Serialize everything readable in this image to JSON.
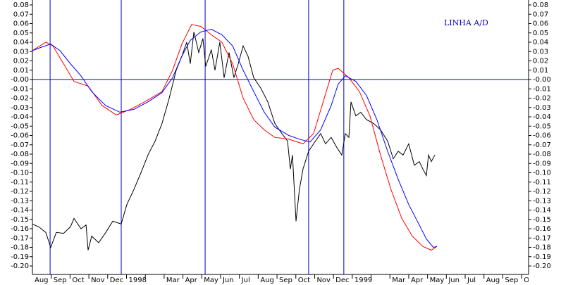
{
  "chart_data": {
    "type": "line",
    "title": "LINHA A/D",
    "categories": [
      "Aug",
      "Sep",
      "Oct",
      "Nov",
      "Dec",
      "1998",
      null,
      "Mar",
      "Apr",
      "May",
      "Jun",
      "Jul",
      "Aug",
      "Sep",
      "Oct",
      "Nov",
      "Dec",
      "1999",
      null,
      "Mar",
      "Apr",
      "May",
      "Jun",
      "Jul",
      "Aug",
      "Sep",
      "Oct"
    ],
    "xlim": [
      0,
      26.37
    ],
    "ylim": [
      -0.2,
      0.08
    ],
    "yticks": [
      0.08,
      0.07,
      0.06,
      0.05,
      0.04,
      0.03,
      0.02,
      0.01,
      {
        "value": 0,
        "label": "-0.00"
      },
      -0.01,
      -0.02,
      -0.03,
      -0.04,
      -0.05,
      -0.06,
      -0.07,
      -0.08,
      -0.09,
      {
        "value": -0.1,
        "label": "-0.10"
      },
      -0.11,
      -0.12,
      -0.13,
      -0.14,
      -0.15,
      -0.16,
      -0.17,
      -0.18,
      -0.19,
      {
        "value": -0.2,
        "label": "-0.20"
      }
    ],
    "vlines": [
      0.94,
      4.72,
      9.18,
      14.68,
      16.55
    ],
    "hline": 0,
    "series": [
      {
        "color": "#000000",
        "x": [
          0,
          0.34,
          0.71,
          0.97,
          1.27,
          1.65,
          2.02,
          2.21,
          2.58,
          2.85,
          2.96,
          3.15,
          3.52,
          3.9,
          4.27,
          4.72,
          5.02,
          5.39,
          5.77,
          6.14,
          6.52,
          6.89,
          7.27,
          7.64,
          7.94,
          8.2,
          8.39,
          8.58,
          8.84,
          9.06,
          9.21,
          9.51,
          9.7,
          9.96,
          10.19,
          10.45,
          10.71,
          10.94,
          11.2,
          11.46,
          11.76,
          12.13,
          12.51,
          12.88,
          13.26,
          13.56,
          13.71,
          13.82,
          14.01,
          14.19,
          14.38,
          14.68,
          14.94,
          15.32,
          15.58,
          15.88,
          16.18,
          16.44,
          16.63,
          16.82,
          16.93,
          17.19,
          17.45,
          17.75,
          18.13,
          18.5,
          18.88,
          19.18,
          19.44,
          19.7,
          20,
          20.3,
          20.56,
          20.75,
          20.94,
          21.05,
          21.2,
          21.39
        ],
        "values": [
          -0.155,
          -0.158,
          -0.164,
          -0.18,
          -0.164,
          -0.165,
          -0.158,
          -0.149,
          -0.16,
          -0.156,
          -0.183,
          -0.168,
          -0.175,
          -0.164,
          -0.152,
          -0.155,
          -0.134,
          -0.118,
          -0.1,
          -0.081,
          -0.066,
          -0.047,
          -0.02,
          0.01,
          0.025,
          0.04,
          0.017,
          0.051,
          0.029,
          0.044,
          0.014,
          0.032,
          0.01,
          0.04,
          0.002,
          0.029,
          0.002,
          0.017,
          0.036,
          0.025,
          0.002,
          -0.009,
          -0.024,
          -0.047,
          -0.058,
          -0.066,
          -0.096,
          -0.081,
          -0.152,
          -0.118,
          -0.096,
          -0.077,
          -0.069,
          -0.058,
          -0.069,
          -0.062,
          -0.073,
          -0.081,
          -0.058,
          -0.062,
          -0.024,
          -0.039,
          -0.035,
          -0.043,
          -0.047,
          -0.054,
          -0.066,
          -0.085,
          -0.077,
          -0.081,
          -0.069,
          -0.092,
          -0.088,
          -0.096,
          -0.103,
          -0.081,
          -0.088,
          -0.081
        ]
      },
      {
        "color": "#ff0000",
        "x": [
          0,
          0.71,
          1.09,
          1.65,
          2.21,
          2.96,
          3.71,
          4.46,
          5.21,
          5.96,
          6.89,
          7.45,
          7.94,
          8.46,
          8.95,
          9.51,
          10.07,
          10.64,
          11.2,
          11.76,
          12.32,
          12.88,
          13.63,
          14.38,
          14.94,
          15.51,
          15.96,
          16.25,
          16.82,
          17.38,
          17.94,
          18.5,
          19.06,
          19.63,
          20.19,
          20.75,
          21.2,
          21.5
        ],
        "values": [
          0.031,
          0.04,
          0.036,
          0.017,
          -0.002,
          -0.007,
          -0.028,
          -0.038,
          -0.032,
          -0.024,
          -0.013,
          0.01,
          0.038,
          0.059,
          0.057,
          0.048,
          0.04,
          0.017,
          -0.02,
          -0.043,
          -0.054,
          -0.062,
          -0.064,
          -0.069,
          -0.058,
          -0.02,
          0.01,
          0.012,
          0.002,
          -0.013,
          -0.039,
          -0.081,
          -0.118,
          -0.149,
          -0.168,
          -0.179,
          -0.183,
          -0.179
        ]
      },
      {
        "color": "#0000ff",
        "x": [
          0,
          0.52,
          0.97,
          1.46,
          2.02,
          2.58,
          3.15,
          3.9,
          4.64,
          5.39,
          6.14,
          6.89,
          7.45,
          7.94,
          8.39,
          8.95,
          9.51,
          10.07,
          10.64,
          11.2,
          11.76,
          12.32,
          12.88,
          13.63,
          14.19,
          14.76,
          15.32,
          15.88,
          16.25,
          16.63,
          17.19,
          17.75,
          18.31,
          18.88,
          19.44,
          20,
          20.56,
          20.94,
          21.31,
          21.5
        ],
        "values": [
          0.031,
          0.035,
          0.038,
          0.031,
          0.017,
          0.004,
          -0.013,
          -0.028,
          -0.035,
          -0.032,
          -0.024,
          -0.014,
          0.002,
          0.025,
          0.042,
          0.051,
          0.054,
          0.048,
          0.036,
          0.01,
          -0.013,
          -0.035,
          -0.051,
          -0.06,
          -0.064,
          -0.067,
          -0.054,
          -0.028,
          -0.005,
          0.004,
          -0.002,
          -0.017,
          -0.043,
          -0.077,
          -0.107,
          -0.134,
          -0.156,
          -0.171,
          -0.18,
          -0.179
        ]
      }
    ]
  }
}
